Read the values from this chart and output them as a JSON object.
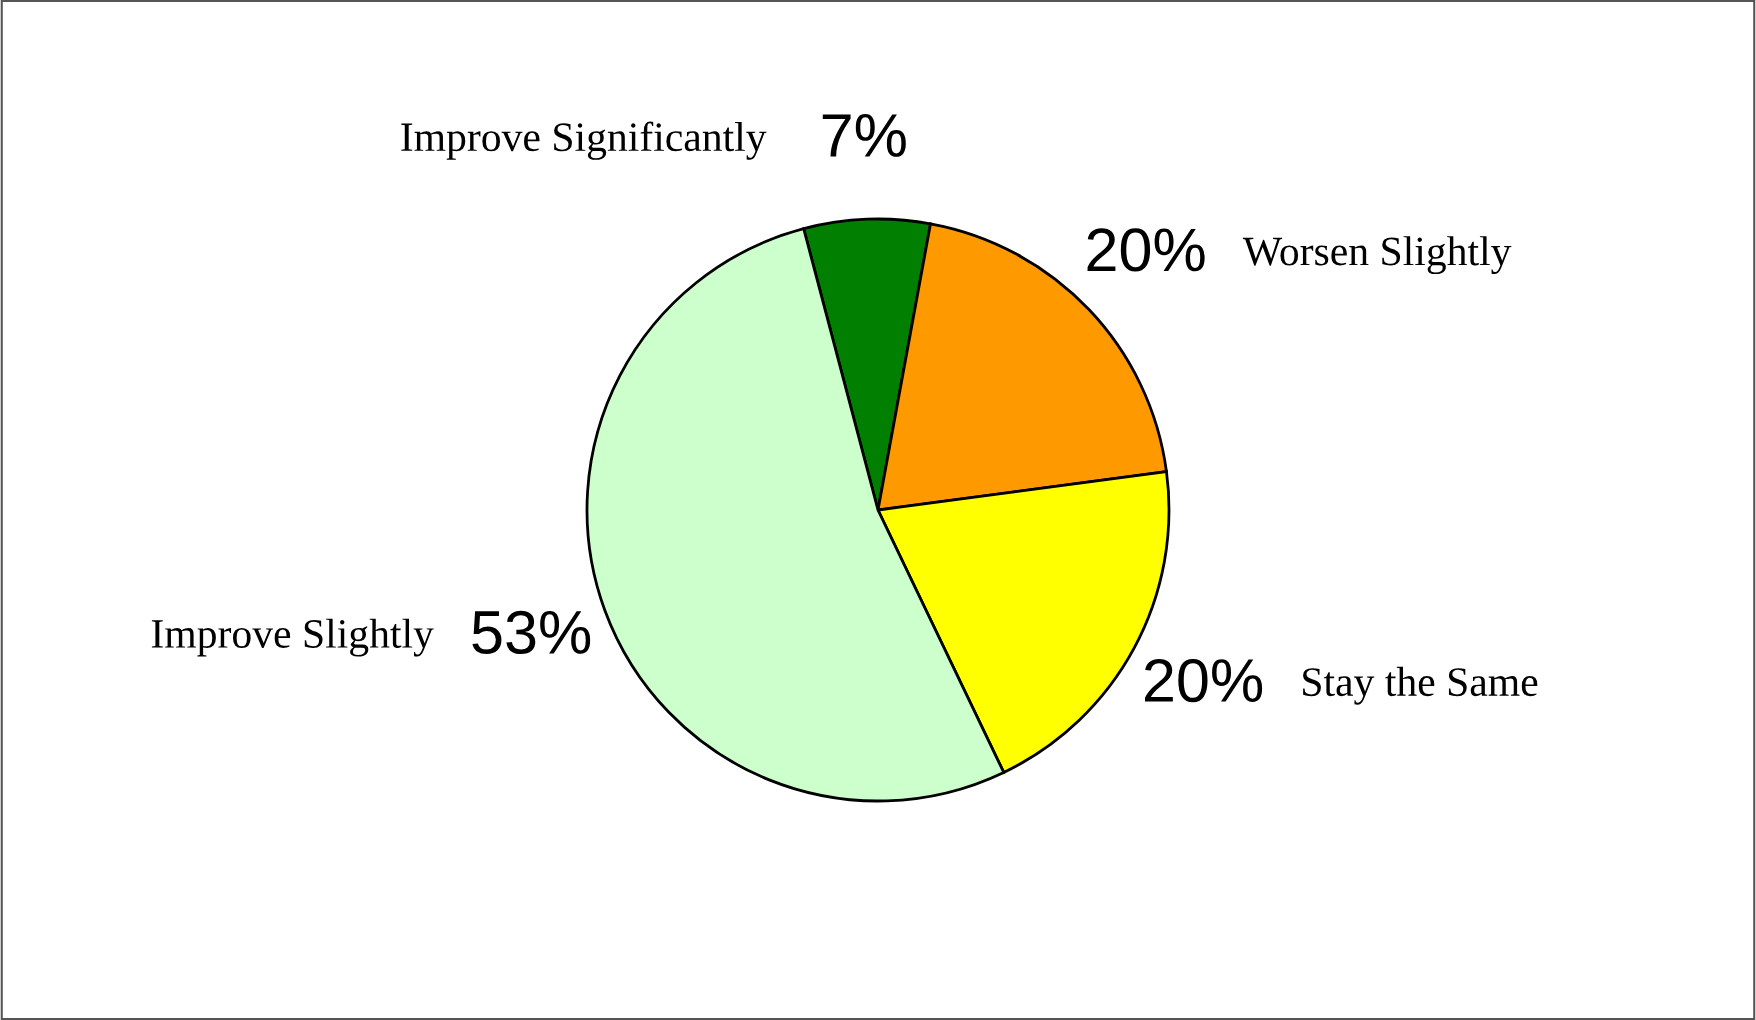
{
  "chart_data": {
    "type": "pie",
    "categories": [
      "Improve Significantly",
      "Worsen Slightly",
      "Stay the Same",
      "Improve Slightly"
    ],
    "values": [
      7,
      20,
      20,
      53
    ],
    "colors": [
      "#007f00",
      "#ff9900",
      "#ffff00",
      "#ccffcc"
    ],
    "value_labels": [
      "7%",
      "20%",
      "20%",
      "53%"
    ],
    "legend": false
  }
}
